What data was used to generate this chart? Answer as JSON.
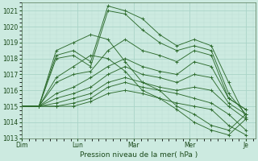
{
  "xlabel": "Pression niveau de la mer( hPa )",
  "ylim": [
    1013,
    1021.5
  ],
  "yticks": [
    1013,
    1014,
    1015,
    1016,
    1017,
    1018,
    1019,
    1020,
    1021
  ],
  "day_labels": [
    "Dim",
    "Lun",
    "Mar",
    "Mer",
    "Je"
  ],
  "day_positions": [
    0,
    24,
    48,
    72,
    96
  ],
  "xlim": [
    0,
    100
  ],
  "bg_color": "#cceae0",
  "grid_major_color": "#aad4c8",
  "grid_minor_color": "#bbddd5",
  "line_color": "#2d6b2d",
  "series": [
    [
      1015.0,
      1015.0,
      1018.2,
      1018.5,
      1017.8,
      1021.3,
      1021.0,
      1020.5,
      1019.5,
      1018.8,
      1019.2,
      1018.8,
      1016.5,
      1014.3
    ],
    [
      1015.0,
      1015.0,
      1018.0,
      1018.2,
      1017.5,
      1021.0,
      1020.8,
      1019.8,
      1019.0,
      1018.5,
      1018.8,
      1018.5,
      1015.8,
      1014.5
    ],
    [
      1015.0,
      1015.0,
      1016.5,
      1017.0,
      1017.2,
      1018.5,
      1019.2,
      1018.5,
      1018.2,
      1017.8,
      1018.5,
      1018.2,
      1015.5,
      1014.8
    ],
    [
      1015.0,
      1015.0,
      1015.8,
      1016.2,
      1016.8,
      1017.5,
      1018.0,
      1017.5,
      1017.2,
      1017.0,
      1017.8,
      1017.5,
      1015.5,
      1014.8
    ],
    [
      1015.0,
      1015.0,
      1015.5,
      1015.8,
      1016.2,
      1017.0,
      1017.5,
      1017.0,
      1016.8,
      1016.5,
      1017.0,
      1016.8,
      1015.2,
      1014.5
    ],
    [
      1015.0,
      1015.0,
      1015.2,
      1015.5,
      1015.8,
      1016.5,
      1016.8,
      1016.5,
      1016.2,
      1016.0,
      1016.2,
      1016.0,
      1015.0,
      1014.2
    ],
    [
      1015.0,
      1015.0,
      1015.0,
      1015.2,
      1015.5,
      1016.2,
      1016.5,
      1016.2,
      1016.0,
      1015.8,
      1015.5,
      1015.2,
      1014.5,
      1013.5
    ],
    [
      1015.0,
      1015.0,
      1015.0,
      1015.0,
      1015.3,
      1015.8,
      1016.0,
      1015.8,
      1015.5,
      1015.2,
      1015.0,
      1014.8,
      1013.8,
      1013.2
    ],
    [
      1015.0,
      1015.0,
      1018.5,
      1019.0,
      1019.5,
      1019.2,
      1017.8,
      1016.5,
      1016.0,
      1015.0,
      1014.5,
      1013.8,
      1013.5,
      1014.5
    ],
    [
      1015.0,
      1015.0,
      1016.8,
      1017.5,
      1018.2,
      1018.0,
      1017.2,
      1016.0,
      1015.5,
      1014.8,
      1014.0,
      1013.5,
      1013.2,
      1014.2
    ]
  ],
  "xlabel_fontsize": 6.5,
  "tick_fontsize": 5.5
}
